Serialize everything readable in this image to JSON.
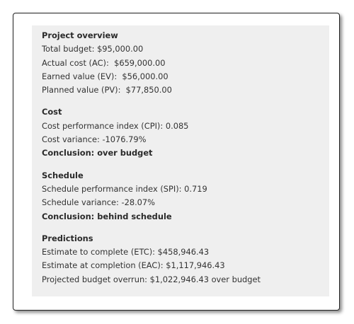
{
  "sections": [
    {
      "title": "Project overview",
      "items": [
        "Total budget: $95,000.00",
        "Actual cost (AC):  $659,000.00",
        "Earned value (EV):  $56,000.00",
        "Planned value (PV):  $77,850.00"
      ]
    },
    {
      "title": "Cost",
      "items": [
        "Cost performance index (CPI): 0.085",
        "Cost variance: -1076.79%"
      ],
      "conclusion": "Conclusion: over budget"
    },
    {
      "title": "Schedule",
      "items": [
        "Schedule performance index (SPI): 0.719",
        "Schedule variance: -28.07%"
      ],
      "conclusion": "Conclusion: behind schedule"
    },
    {
      "title": "Predictions",
      "items": [
        "Estimate to complete (ETC): $458,946.43",
        "Estimate at completion (EAC): $1,117,946.43",
        "Projected budget overrun: $1,022,946.43 over budget"
      ]
    }
  ]
}
